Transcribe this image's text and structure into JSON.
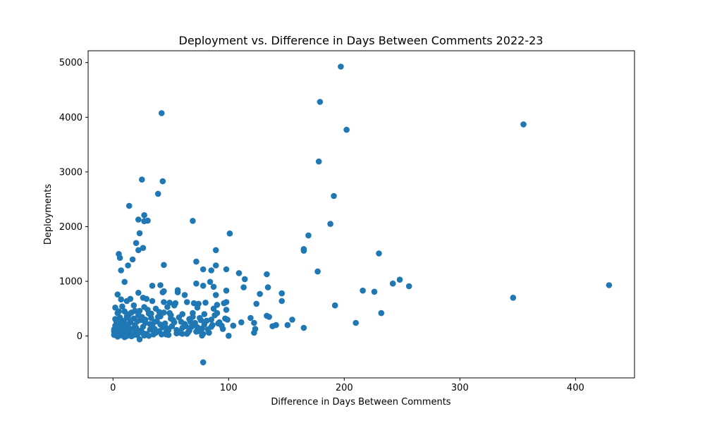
{
  "chart_data": {
    "type": "scatter",
    "title": "Deployment vs. Difference in Days Between Comments 2022-23",
    "xlabel": "Difference in Days Between Comments",
    "ylabel": "Deployments",
    "xlim": [
      -21.5,
      451
    ],
    "ylim": [
      -765,
      5215
    ],
    "xticks": [
      0,
      100,
      200,
      300,
      400
    ],
    "yticks": [
      0,
      1000,
      2000,
      3000,
      4000,
      5000
    ],
    "grid": false,
    "marker_color": "#1f77b4",
    "points": [
      [
        197,
        4925
      ],
      [
        179,
        4280
      ],
      [
        202,
        3770
      ],
      [
        355,
        3870
      ],
      [
        42,
        4075
      ],
      [
        178,
        3190
      ],
      [
        25,
        2860
      ],
      [
        43,
        2830
      ],
      [
        191,
        2560
      ],
      [
        39,
        2600
      ],
      [
        14,
        2380
      ],
      [
        27,
        2210
      ],
      [
        22,
        2130
      ],
      [
        27,
        2100
      ],
      [
        30,
        2110
      ],
      [
        69,
        2105
      ],
      [
        188,
        2050
      ],
      [
        101,
        1875
      ],
      [
        23,
        1880
      ],
      [
        169,
        1840
      ],
      [
        20,
        1700
      ],
      [
        26,
        1610
      ],
      [
        22,
        1570
      ],
      [
        89,
        1570
      ],
      [
        165,
        1590
      ],
      [
        165,
        1560
      ],
      [
        230,
        1510
      ],
      [
        5,
        1500
      ],
      [
        6,
        1430
      ],
      [
        17,
        1400
      ],
      [
        72,
        1360
      ],
      [
        13,
        1290
      ],
      [
        44,
        1300
      ],
      [
        89,
        1290
      ],
      [
        7,
        1200
      ],
      [
        78,
        1220
      ],
      [
        85,
        1200
      ],
      [
        98,
        1220
      ],
      [
        109,
        1150
      ],
      [
        177,
        1180
      ],
      [
        133,
        1130
      ],
      [
        114,
        1040
      ],
      [
        10,
        990
      ],
      [
        248,
        1030
      ],
      [
        242,
        960
      ],
      [
        256,
        910
      ],
      [
        429,
        930
      ],
      [
        34,
        920
      ],
      [
        41,
        930
      ],
      [
        72,
        960
      ],
      [
        78,
        920
      ],
      [
        84,
        990
      ],
      [
        87,
        900
      ],
      [
        113,
        890
      ],
      [
        134,
        890
      ],
      [
        216,
        830
      ],
      [
        226,
        810
      ],
      [
        98,
        830
      ],
      [
        127,
        770
      ],
      [
        146,
        780
      ],
      [
        43,
        800
      ],
      [
        44,
        820
      ],
      [
        56,
        800
      ],
      [
        56,
        840
      ],
      [
        62,
        750
      ],
      [
        89,
        750
      ],
      [
        346,
        700
      ],
      [
        4,
        760
      ],
      [
        22,
        790
      ],
      [
        146,
        640
      ],
      [
        192,
        560
      ],
      [
        232,
        420
      ],
      [
        210,
        240
      ],
      [
        165,
        150
      ],
      [
        78,
        -480
      ],
      [
        124,
        590
      ],
      [
        7,
        670
      ],
      [
        12,
        640
      ],
      [
        15,
        680
      ],
      [
        26,
        700
      ],
      [
        29,
        680
      ],
      [
        34,
        640
      ],
      [
        44,
        620
      ],
      [
        49,
        610
      ],
      [
        54,
        600
      ],
      [
        64,
        620
      ],
      [
        70,
        600
      ],
      [
        74,
        590
      ],
      [
        80,
        610
      ],
      [
        90,
        570
      ],
      [
        96,
        600
      ],
      [
        98,
        620
      ],
      [
        2,
        520
      ],
      [
        8,
        540
      ],
      [
        18,
        560
      ],
      [
        27,
        530
      ],
      [
        37,
        500
      ],
      [
        47,
        530
      ],
      [
        53,
        560
      ],
      [
        73,
        520
      ],
      [
        87,
        500
      ],
      [
        98,
        480
      ],
      [
        4,
        420
      ],
      [
        10,
        450
      ],
      [
        16,
        430
      ],
      [
        23,
        460
      ],
      [
        31,
        410
      ],
      [
        40,
        440
      ],
      [
        49,
        420
      ],
      [
        60,
        400
      ],
      [
        69,
        420
      ],
      [
        79,
        400
      ],
      [
        88,
        380
      ],
      [
        119,
        330
      ],
      [
        133,
        370
      ],
      [
        135,
        350
      ],
      [
        155,
        300
      ],
      [
        6,
        340
      ],
      [
        12,
        360
      ],
      [
        18,
        320
      ],
      [
        25,
        350
      ],
      [
        33,
        330
      ],
      [
        41,
        360
      ],
      [
        50,
        320
      ],
      [
        57,
        340
      ],
      [
        66,
        310
      ],
      [
        75,
        330
      ],
      [
        85,
        300
      ],
      [
        97,
        320
      ],
      [
        3,
        260
      ],
      [
        9,
        280
      ],
      [
        15,
        250
      ],
      [
        21,
        270
      ],
      [
        28,
        240
      ],
      [
        36,
        260
      ],
      [
        45,
        230
      ],
      [
        53,
        250
      ],
      [
        62,
        220
      ],
      [
        71,
        240
      ],
      [
        79,
        210
      ],
      [
        91,
        230
      ],
      [
        111,
        250
      ],
      [
        122,
        240
      ],
      [
        141,
        200
      ],
      [
        151,
        200
      ],
      [
        2,
        190
      ],
      [
        7,
        210
      ],
      [
        13,
        180
      ],
      [
        19,
        200
      ],
      [
        26,
        170
      ],
      [
        34,
        190
      ],
      [
        43,
        160
      ],
      [
        51,
        180
      ],
      [
        60,
        150
      ],
      [
        68,
        170
      ],
      [
        77,
        140
      ],
      [
        86,
        200
      ],
      [
        94,
        190
      ],
      [
        104,
        190
      ],
      [
        138,
        180
      ],
      [
        1,
        120
      ],
      [
        5,
        140
      ],
      [
        11,
        110
      ],
      [
        17,
        130
      ],
      [
        24,
        100
      ],
      [
        32,
        120
      ],
      [
        40,
        90
      ],
      [
        48,
        110
      ],
      [
        57,
        80
      ],
      [
        66,
        100
      ],
      [
        75,
        90
      ],
      [
        82,
        120
      ],
      [
        123,
        130
      ],
      [
        3,
        60
      ],
      [
        8,
        80
      ],
      [
        14,
        50
      ],
      [
        20,
        70
      ],
      [
        29,
        40
      ],
      [
        37,
        60
      ],
      [
        46,
        30
      ],
      [
        55,
        50
      ],
      [
        65,
        70
      ],
      [
        78,
        40
      ],
      [
        122,
        60
      ],
      [
        1,
        20
      ],
      [
        6,
        10
      ],
      [
        12,
        0
      ],
      [
        18,
        20
      ],
      [
        27,
        10
      ],
      [
        35,
        30
      ],
      [
        4,
        -10
      ],
      [
        10,
        -20
      ],
      [
        16,
        -5
      ],
      [
        23,
        -60
      ],
      [
        31,
        5
      ],
      [
        48,
        20
      ],
      [
        60,
        40
      ],
      [
        77,
        10
      ],
      [
        100,
        5
      ],
      [
        2,
        310
      ],
      [
        6,
        230
      ],
      [
        9,
        170
      ],
      [
        11,
        90
      ],
      [
        14,
        400
      ],
      [
        20,
        150
      ],
      [
        22,
        380
      ],
      [
        25,
        70
      ],
      [
        28,
        300
      ],
      [
        30,
        480
      ],
      [
        32,
        220
      ],
      [
        35,
        100
      ],
      [
        38,
        270
      ],
      [
        42,
        30
      ],
      [
        44,
        430
      ],
      [
        47,
        140
      ],
      [
        52,
        290
      ],
      [
        58,
        60
      ],
      [
        63,
        180
      ],
      [
        67,
        260
      ],
      [
        72,
        80
      ],
      [
        81,
        280
      ],
      [
        85,
        170
      ],
      [
        92,
        250
      ],
      [
        99,
        300
      ],
      [
        1,
        80
      ],
      [
        3,
        150
      ],
      [
        5,
        450
      ],
      [
        8,
        30
      ],
      [
        10,
        240
      ],
      [
        13,
        330
      ],
      [
        15,
        110
      ],
      [
        19,
        460
      ],
      [
        21,
        20
      ],
      [
        24,
        290
      ],
      [
        26,
        50
      ],
      [
        33,
        410
      ],
      [
        36,
        130
      ],
      [
        39,
        350
      ],
      [
        41,
        210
      ],
      [
        46,
        70
      ],
      [
        50,
        380
      ],
      [
        55,
        110
      ],
      [
        59,
        260
      ],
      [
        64,
        40
      ],
      [
        69,
        350
      ],
      [
        73,
        160
      ],
      [
        76,
        290
      ],
      [
        83,
        60
      ],
      [
        90,
        420
      ],
      [
        95,
        130
      ]
    ]
  }
}
